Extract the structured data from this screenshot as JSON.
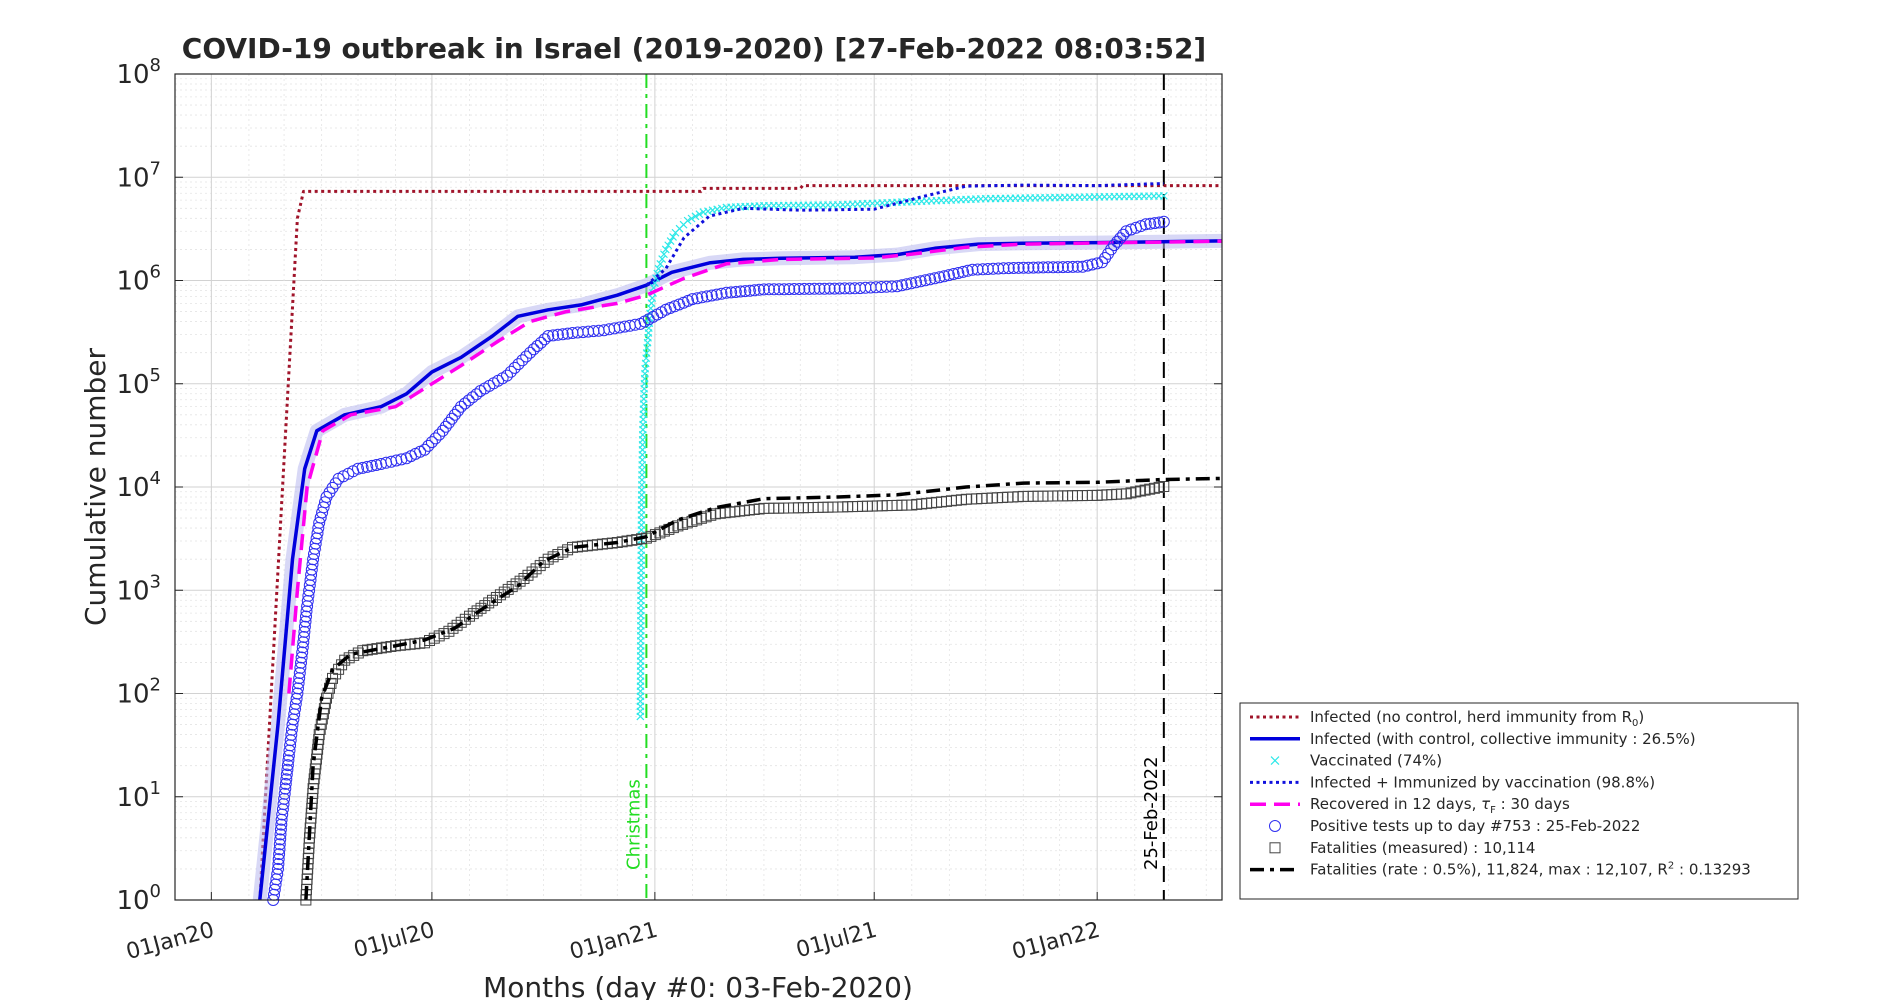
{
  "chart_data": {
    "type": "line",
    "title": "COVID-19 outbreak in Israel (2019-2020) [27-Feb-2022 08:03:52]",
    "xlabel": "Months (day #0: 03-Feb-2020)",
    "ylabel": "Cumulative number",
    "y_scale": "log",
    "ylim": [
      1,
      100000000
    ],
    "xlim": [
      "2019-12-02",
      "2022-04-14"
    ],
    "x_ticks": [
      {
        "date": "2020-01-01",
        "label": "01Jan20"
      },
      {
        "date": "2020-07-01",
        "label": "01Jul20"
      },
      {
        "date": "2021-01-01",
        "label": "01Jan21"
      },
      {
        "date": "2021-07-01",
        "label": "01Jul21"
      },
      {
        "date": "2022-01-01",
        "label": "01Jan22"
      }
    ],
    "y_ticks": [
      {
        "value": 1,
        "base": "10",
        "exp": "0"
      },
      {
        "value": 10,
        "base": "10",
        "exp": "1"
      },
      {
        "value": 100,
        "base": "10",
        "exp": "2"
      },
      {
        "value": 1000,
        "base": "10",
        "exp": "3"
      },
      {
        "value": 10000,
        "base": "10",
        "exp": "4"
      },
      {
        "value": 100000,
        "base": "10",
        "exp": "5"
      },
      {
        "value": 1000000,
        "base": "10",
        "exp": "6"
      },
      {
        "value": 10000000,
        "base": "10",
        "exp": "7"
      },
      {
        "value": 100000000,
        "base": "10",
        "exp": "8"
      }
    ],
    "grid": true,
    "legend_position": "bottom-right outside",
    "vlines": [
      {
        "date": "2020-12-25",
        "label": "Christmas",
        "color": "#22dd22",
        "style": "dashdot"
      },
      {
        "date": "2022-02-25",
        "label": "25-Feb-2022",
        "color": "#000000",
        "style": "dashed"
      }
    ],
    "series": [
      {
        "key": "no_control",
        "legend": "Infected (no control, herd immunity from R",
        "legend_sub": "0",
        "legend_tail": ")",
        "color": "#a0142a",
        "style": "dotted",
        "width": 3,
        "points": [
          [
            "2020-02-10",
            1
          ],
          [
            "2020-03-12",
            4000000
          ],
          [
            "2020-03-17",
            7300000
          ],
          [
            "2021-02-08",
            7300000
          ],
          [
            "2021-02-10",
            7800000
          ],
          [
            "2021-05-01",
            7800000
          ],
          [
            "2021-05-03",
            8300000
          ],
          [
            "2022-04-14",
            8300000
          ]
        ]
      },
      {
        "key": "with_control",
        "legend": "Infected (with control, collective immunity : 26.5%)",
        "color": "#0000dd",
        "style": "solid",
        "width": 3.5,
        "band": "#b8b8ee",
        "points": [
          [
            "2020-02-10",
            1
          ],
          [
            "2020-02-25",
            50
          ],
          [
            "2020-03-08",
            2000
          ],
          [
            "2020-03-18",
            15000
          ],
          [
            "2020-03-28",
            35000
          ],
          [
            "2020-04-20",
            50000
          ],
          [
            "2020-05-20",
            60000
          ],
          [
            "2020-06-10",
            80000
          ],
          [
            "2020-07-01",
            130000
          ],
          [
            "2020-07-25",
            180000
          ],
          [
            "2020-08-20",
            290000
          ],
          [
            "2020-09-10",
            450000
          ],
          [
            "2020-10-05",
            520000
          ],
          [
            "2020-11-01",
            580000
          ],
          [
            "2020-12-01",
            720000
          ],
          [
            "2020-12-25",
            900000
          ],
          [
            "2021-01-15",
            1200000
          ],
          [
            "2021-02-15",
            1480000
          ],
          [
            "2021-03-15",
            1600000
          ],
          [
            "2021-04-15",
            1640000
          ],
          [
            "2021-06-15",
            1680000
          ],
          [
            "2021-07-20",
            1780000
          ],
          [
            "2021-08-20",
            2050000
          ],
          [
            "2021-09-25",
            2250000
          ],
          [
            "2021-11-01",
            2300000
          ],
          [
            "2022-01-01",
            2330000
          ],
          [
            "2022-04-14",
            2420000
          ]
        ]
      },
      {
        "key": "vaccinated",
        "legend": "Vaccinated (74%)",
        "color": "#2ce8e8",
        "style": "markers-x",
        "points": [
          [
            "2020-12-20",
            60
          ],
          [
            "2020-12-21",
            7500
          ],
          [
            "2020-12-22",
            32000
          ],
          [
            "2020-12-23",
            80000
          ],
          [
            "2020-12-24",
            140000
          ],
          [
            "2020-12-26",
            250000
          ],
          [
            "2020-12-28",
            480000
          ],
          [
            "2020-12-31",
            850000
          ],
          [
            "2021-01-04",
            1300000
          ],
          [
            "2021-01-10",
            2000000
          ],
          [
            "2021-01-18",
            2900000
          ],
          [
            "2021-01-28",
            3800000
          ],
          [
            "2021-02-10",
            4600000
          ],
          [
            "2021-03-01",
            5100000
          ],
          [
            "2021-04-01",
            5300000
          ],
          [
            "2021-06-01",
            5400000
          ],
          [
            "2021-08-01",
            5800000
          ],
          [
            "2021-10-01",
            6200000
          ],
          [
            "2022-02-25",
            6600000
          ]
        ]
      },
      {
        "key": "infected_immunized",
        "legend": "Infected + Immunized by vaccination (98.8%)",
        "color": "#1010dd",
        "style": "dotted",
        "width": 3,
        "points": [
          [
            "2020-12-25",
            900000
          ],
          [
            "2021-01-10",
            1300000
          ],
          [
            "2021-01-25",
            2600000
          ],
          [
            "2021-02-15",
            4200000
          ],
          [
            "2021-03-15",
            5000000
          ],
          [
            "2021-05-01",
            4800000
          ],
          [
            "2021-07-01",
            4900000
          ],
          [
            "2021-08-10",
            6500000
          ],
          [
            "2021-09-15",
            8200000
          ],
          [
            "2021-11-01",
            8400000
          ],
          [
            "2022-01-01",
            8300000
          ],
          [
            "2022-02-25",
            8700000
          ]
        ]
      },
      {
        "key": "recovered",
        "legend": "Recovered in 12 days, ",
        "legend_tau": "τ",
        "legend_tau_sub": "F",
        "legend_tail": " : 30 days",
        "color": "#ff00ee",
        "style": "dashed",
        "width": 3.5,
        "points": [
          [
            "2020-03-05",
            100
          ],
          [
            "2020-03-12",
            1000
          ],
          [
            "2020-03-20",
            10000
          ],
          [
            "2020-04-02",
            35000
          ],
          [
            "2020-04-25",
            50000
          ],
          [
            "2020-06-01",
            60000
          ],
          [
            "2020-07-01",
            100000
          ],
          [
            "2020-07-25",
            150000
          ],
          [
            "2020-08-25",
            260000
          ],
          [
            "2020-09-20",
            400000
          ],
          [
            "2020-10-20",
            500000
          ],
          [
            "2020-12-01",
            600000
          ],
          [
            "2020-12-25",
            720000
          ],
          [
            "2021-01-25",
            1050000
          ],
          [
            "2021-03-01",
            1450000
          ],
          [
            "2021-04-15",
            1600000
          ],
          [
            "2021-07-01",
            1650000
          ],
          [
            "2021-08-01",
            1800000
          ],
          [
            "2021-09-15",
            2100000
          ],
          [
            "2021-11-01",
            2250000
          ],
          [
            "2022-04-14",
            2400000
          ]
        ]
      },
      {
        "key": "positive_tests",
        "legend": "Positive tests up to day #753 : 25-Feb-2022",
        "color": "#2f2ff0",
        "style": "markers-o",
        "points": [
          [
            "2020-02-21",
            1
          ],
          [
            "2020-02-25",
            2
          ],
          [
            "2020-02-28",
            6
          ],
          [
            "2020-03-02",
            12
          ],
          [
            "2020-03-05",
            25
          ],
          [
            "2020-03-08",
            50
          ],
          [
            "2020-03-12",
            100
          ],
          [
            "2020-03-16",
            250
          ],
          [
            "2020-03-20",
            700
          ],
          [
            "2020-03-25",
            2000
          ],
          [
            "2020-03-30",
            4500
          ],
          [
            "2020-04-05",
            8000
          ],
          [
            "2020-04-15",
            12000
          ],
          [
            "2020-05-01",
            15000
          ],
          [
            "2020-05-20",
            16700
          ],
          [
            "2020-06-10",
            19000
          ],
          [
            "2020-06-25",
            23000
          ],
          [
            "2020-07-10",
            35000
          ],
          [
            "2020-07-25",
            60000
          ],
          [
            "2020-08-10",
            85000
          ],
          [
            "2020-09-01",
            120000
          ],
          [
            "2020-09-20",
            200000
          ],
          [
            "2020-10-05",
            290000
          ],
          [
            "2020-10-25",
            310000
          ],
          [
            "2020-11-20",
            330000
          ],
          [
            "2020-12-20",
            380000
          ],
          [
            "2021-01-10",
            520000
          ],
          [
            "2021-02-01",
            660000
          ],
          [
            "2021-03-01",
            760000
          ],
          [
            "2021-04-01",
            820000
          ],
          [
            "2021-06-15",
            840000
          ],
          [
            "2021-07-20",
            880000
          ],
          [
            "2021-08-20",
            1050000
          ],
          [
            "2021-09-20",
            1270000
          ],
          [
            "2021-10-20",
            1320000
          ],
          [
            "2021-12-20",
            1360000
          ],
          [
            "2022-01-05",
            1500000
          ],
          [
            "2022-01-15",
            2200000
          ],
          [
            "2022-01-25",
            3000000
          ],
          [
            "2022-02-10",
            3500000
          ],
          [
            "2022-02-25",
            3700000
          ]
        ]
      },
      {
        "key": "fatalities_measured",
        "legend": "Fatalities (measured) : 10,114",
        "color": "#444444",
        "style": "markers-sq",
        "points": [
          [
            "2020-03-19",
            1
          ],
          [
            "2020-03-22",
            4
          ],
          [
            "2020-03-25",
            12
          ],
          [
            "2020-03-30",
            40
          ],
          [
            "2020-04-05",
            90
          ],
          [
            "2020-04-10",
            140
          ],
          [
            "2020-04-20",
            210
          ],
          [
            "2020-05-05",
            260
          ],
          [
            "2020-06-01",
            290
          ],
          [
            "2020-06-25",
            310
          ],
          [
            "2020-07-15",
            400
          ],
          [
            "2020-08-01",
            560
          ],
          [
            "2020-08-20",
            800
          ],
          [
            "2020-09-15",
            1300
          ],
          [
            "2020-10-05",
            2000
          ],
          [
            "2020-10-25",
            2600
          ],
          [
            "2020-12-01",
            2900
          ],
          [
            "2020-12-25",
            3200
          ],
          [
            "2021-01-20",
            4200
          ],
          [
            "2021-02-20",
            5500
          ],
          [
            "2021-04-01",
            6200
          ],
          [
            "2021-06-01",
            6400
          ],
          [
            "2021-08-01",
            6700
          ],
          [
            "2021-09-15",
            7600
          ],
          [
            "2021-11-01",
            8100
          ],
          [
            "2022-01-01",
            8300
          ],
          [
            "2022-01-25",
            8600
          ],
          [
            "2022-02-25",
            10114
          ]
        ]
      },
      {
        "key": "fatalities_rate",
        "legend": "Fatalities (rate : 0.5%), 11,824, max : 12,107, R",
        "legend_sup": "2",
        "legend_tail": " : 0.13293",
        "color": "#000000",
        "style": "dashdot",
        "width": 3.5,
        "points": [
          [
            "2020-03-19",
            1
          ],
          [
            "2020-03-25",
            20
          ],
          [
            "2020-04-01",
            90
          ],
          [
            "2020-04-10",
            170
          ],
          [
            "2020-04-25",
            240
          ],
          [
            "2020-06-01",
            290
          ],
          [
            "2020-06-25",
            330
          ],
          [
            "2020-07-20",
            430
          ],
          [
            "2020-08-15",
            700
          ],
          [
            "2020-09-10",
            1100
          ],
          [
            "2020-10-01",
            1900
          ],
          [
            "2020-10-25",
            2600
          ],
          [
            "2020-12-01",
            2900
          ],
          [
            "2020-12-25",
            3300
          ],
          [
            "2021-01-20",
            4800
          ],
          [
            "2021-02-20",
            6300
          ],
          [
            "2021-04-01",
            7700
          ],
          [
            "2021-06-01",
            8000
          ],
          [
            "2021-07-20",
            8400
          ],
          [
            "2021-09-15",
            10000
          ],
          [
            "2021-11-01",
            10900
          ],
          [
            "2022-01-01",
            11100
          ],
          [
            "2022-02-25",
            11824
          ],
          [
            "2022-04-14",
            12107
          ]
        ]
      }
    ]
  }
}
